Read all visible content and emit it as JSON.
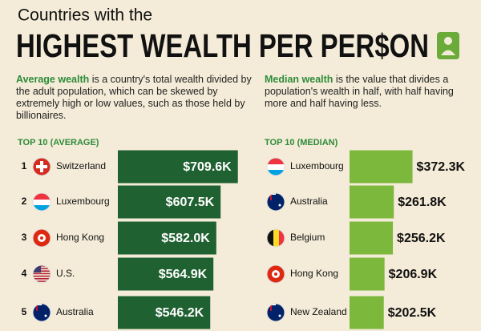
{
  "header": {
    "line1": "Countries with the",
    "line2": "HIGHEST WEALTH PER PER$ON"
  },
  "chart_data": [
    {
      "type": "bar",
      "orientation": "horizontal",
      "title": "TOP 10 (AVERAGE)",
      "description": {
        "term": "Average wealth",
        "text": " is a country's total wealth divided by the adult population, which can be skewed by extremely high or low values, such as those held by billionaires."
      },
      "ranks": [
        1,
        2,
        3,
        4,
        5
      ],
      "categories": [
        "Switzerland",
        "Luxembourg",
        "Hong Kong",
        "U.S.",
        "Australia"
      ],
      "values": [
        709.6,
        607.5,
        582.0,
        564.9,
        546.2
      ],
      "value_labels": [
        "$709.6K",
        "$607.5K",
        "$582.0K",
        "$564.9K",
        "$546.2K"
      ],
      "color": "#1f6130",
      "label_position": "inside"
    },
    {
      "type": "bar",
      "orientation": "horizontal",
      "title": "TOP 10 (MEDIAN)",
      "description": {
        "term": "Median wealth",
        "text": " is the value that divides a population's wealth in half, with half having more and half having less."
      },
      "categories": [
        "Luxembourg",
        "Australia",
        "Belgium",
        "Hong Kong",
        "New Zealand"
      ],
      "values": [
        372.3,
        261.8,
        256.2,
        206.9,
        202.5
      ],
      "value_labels": [
        "$372.3K",
        "$261.8K",
        "$256.2K",
        "$206.9K",
        "$202.5K"
      ],
      "color": "#7bb83c",
      "label_position": "outside"
    }
  ]
}
